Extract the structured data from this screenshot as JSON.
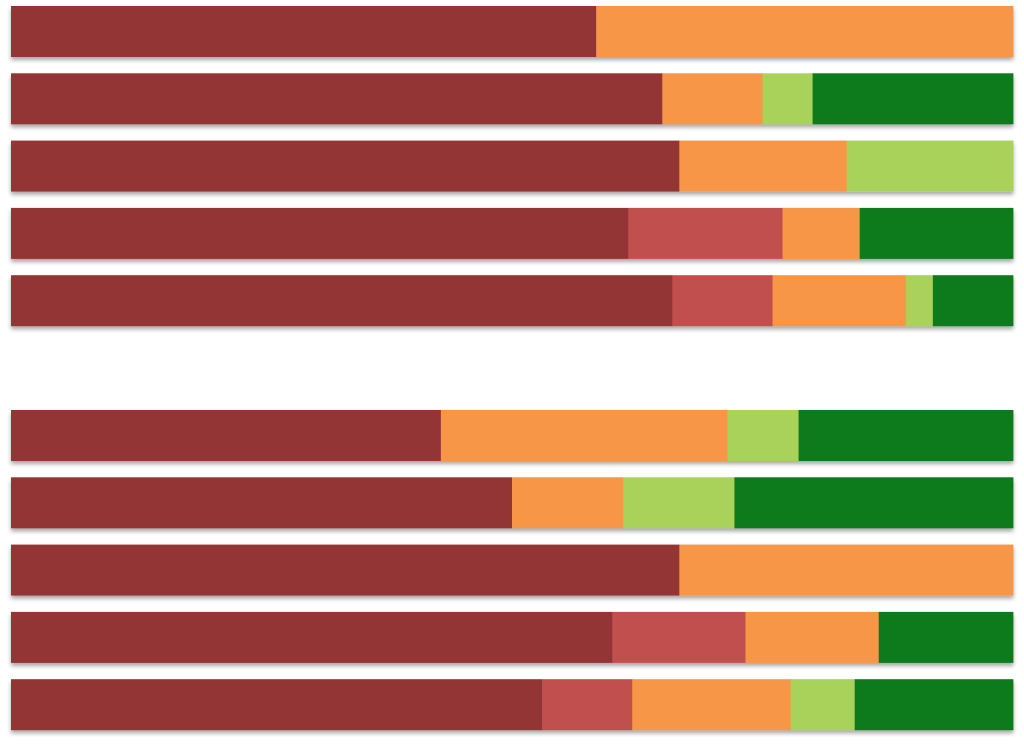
{
  "chart_data": {
    "type": "bar",
    "orientation": "horizontal",
    "stacked": true,
    "normalized": true,
    "title": "",
    "xlabel": "",
    "ylabel": "",
    "xlim": [
      0,
      100
    ],
    "grid": false,
    "legend": "none",
    "colors": [
      "#943634",
      "#C0504D",
      "#F79646",
      "#A8D25A",
      "#107A1C"
    ],
    "groups": [
      {
        "bars": [
          [
            58.4,
            0,
            41.6,
            0,
            0
          ],
          [
            65.0,
            0,
            10.0,
            5.0,
            20.0
          ],
          [
            66.7,
            0,
            16.7,
            16.6,
            0
          ],
          [
            61.6,
            15.4,
            7.7,
            0,
            15.3
          ],
          [
            66.0,
            10.0,
            13.3,
            2.7,
            8.0
          ]
        ]
      },
      {
        "bars": [
          [
            42.9,
            0,
            28.6,
            7.1,
            21.4
          ],
          [
            50.0,
            0,
            11.1,
            11.1,
            27.8
          ],
          [
            66.7,
            0,
            33.3,
            0,
            0
          ],
          [
            60.0,
            13.3,
            13.3,
            0,
            13.4
          ],
          [
            53.0,
            9.0,
            15.8,
            6.4,
            15.8
          ]
        ]
      }
    ]
  }
}
